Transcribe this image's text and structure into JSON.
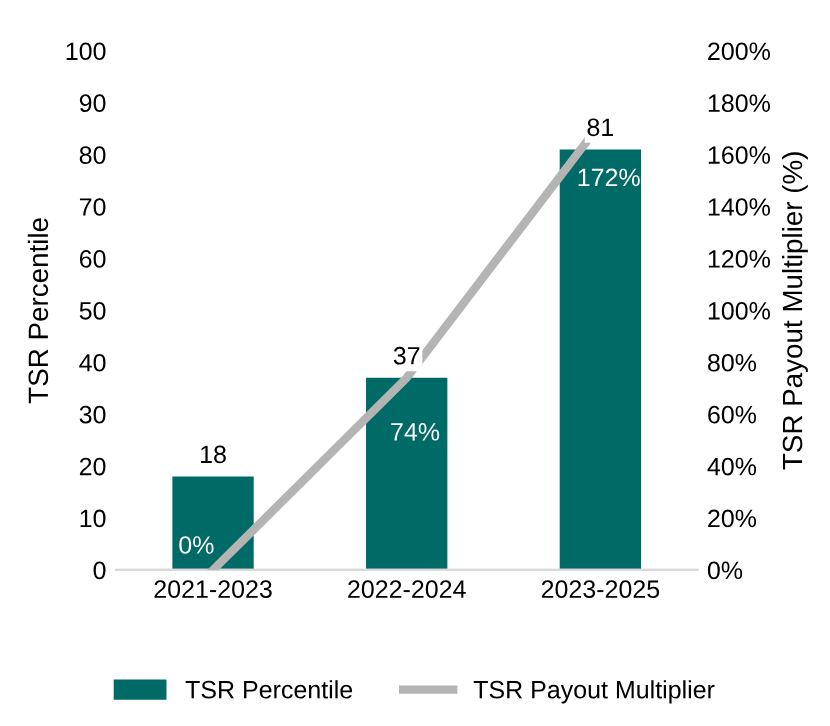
{
  "chart_data": {
    "type": "bar",
    "ylabel": "TSR Percentile",
    "y2label": "TSR Payout Multiplier (%)",
    "categories": [
      "2021-2023",
      "2022-2024",
      "2023-2025"
    ],
    "series": [
      {
        "name": "TSR Percentile",
        "color": "#006a67",
        "values": [
          18,
          37,
          81
        ],
        "value_labels": [
          "18",
          "37",
          "81"
        ]
      },
      {
        "name": "TSR Payout Multiplier",
        "type": "line",
        "axis": "y2",
        "color": "#b4b4b4",
        "values": [
          0,
          74,
          172
        ],
        "value_labels": [
          "0%",
          "74%",
          "172%"
        ]
      }
    ],
    "ylim": [
      0,
      100
    ],
    "yticks": [
      0,
      10,
      20,
      30,
      40,
      50,
      60,
      70,
      80,
      90,
      100
    ],
    "y2lim": [
      0,
      200
    ],
    "y2ticks": [
      {
        "value": 0,
        "label": "0%"
      },
      {
        "value": 20,
        "label": "20%"
      },
      {
        "value": 40,
        "label": "40%"
      },
      {
        "value": 60,
        "label": "60%"
      },
      {
        "value": 80,
        "label": "80%"
      },
      {
        "value": 100,
        "label": "100%"
      },
      {
        "value": 120,
        "label": "120%"
      },
      {
        "value": 140,
        "label": "140%"
      },
      {
        "value": 160,
        "label": "160%"
      },
      {
        "value": 180,
        "label": "180%"
      },
      {
        "value": 200,
        "label": "200%"
      }
    ],
    "legend": "bottom",
    "grid": false,
    "marker": "none",
    "line_style": "solid"
  }
}
